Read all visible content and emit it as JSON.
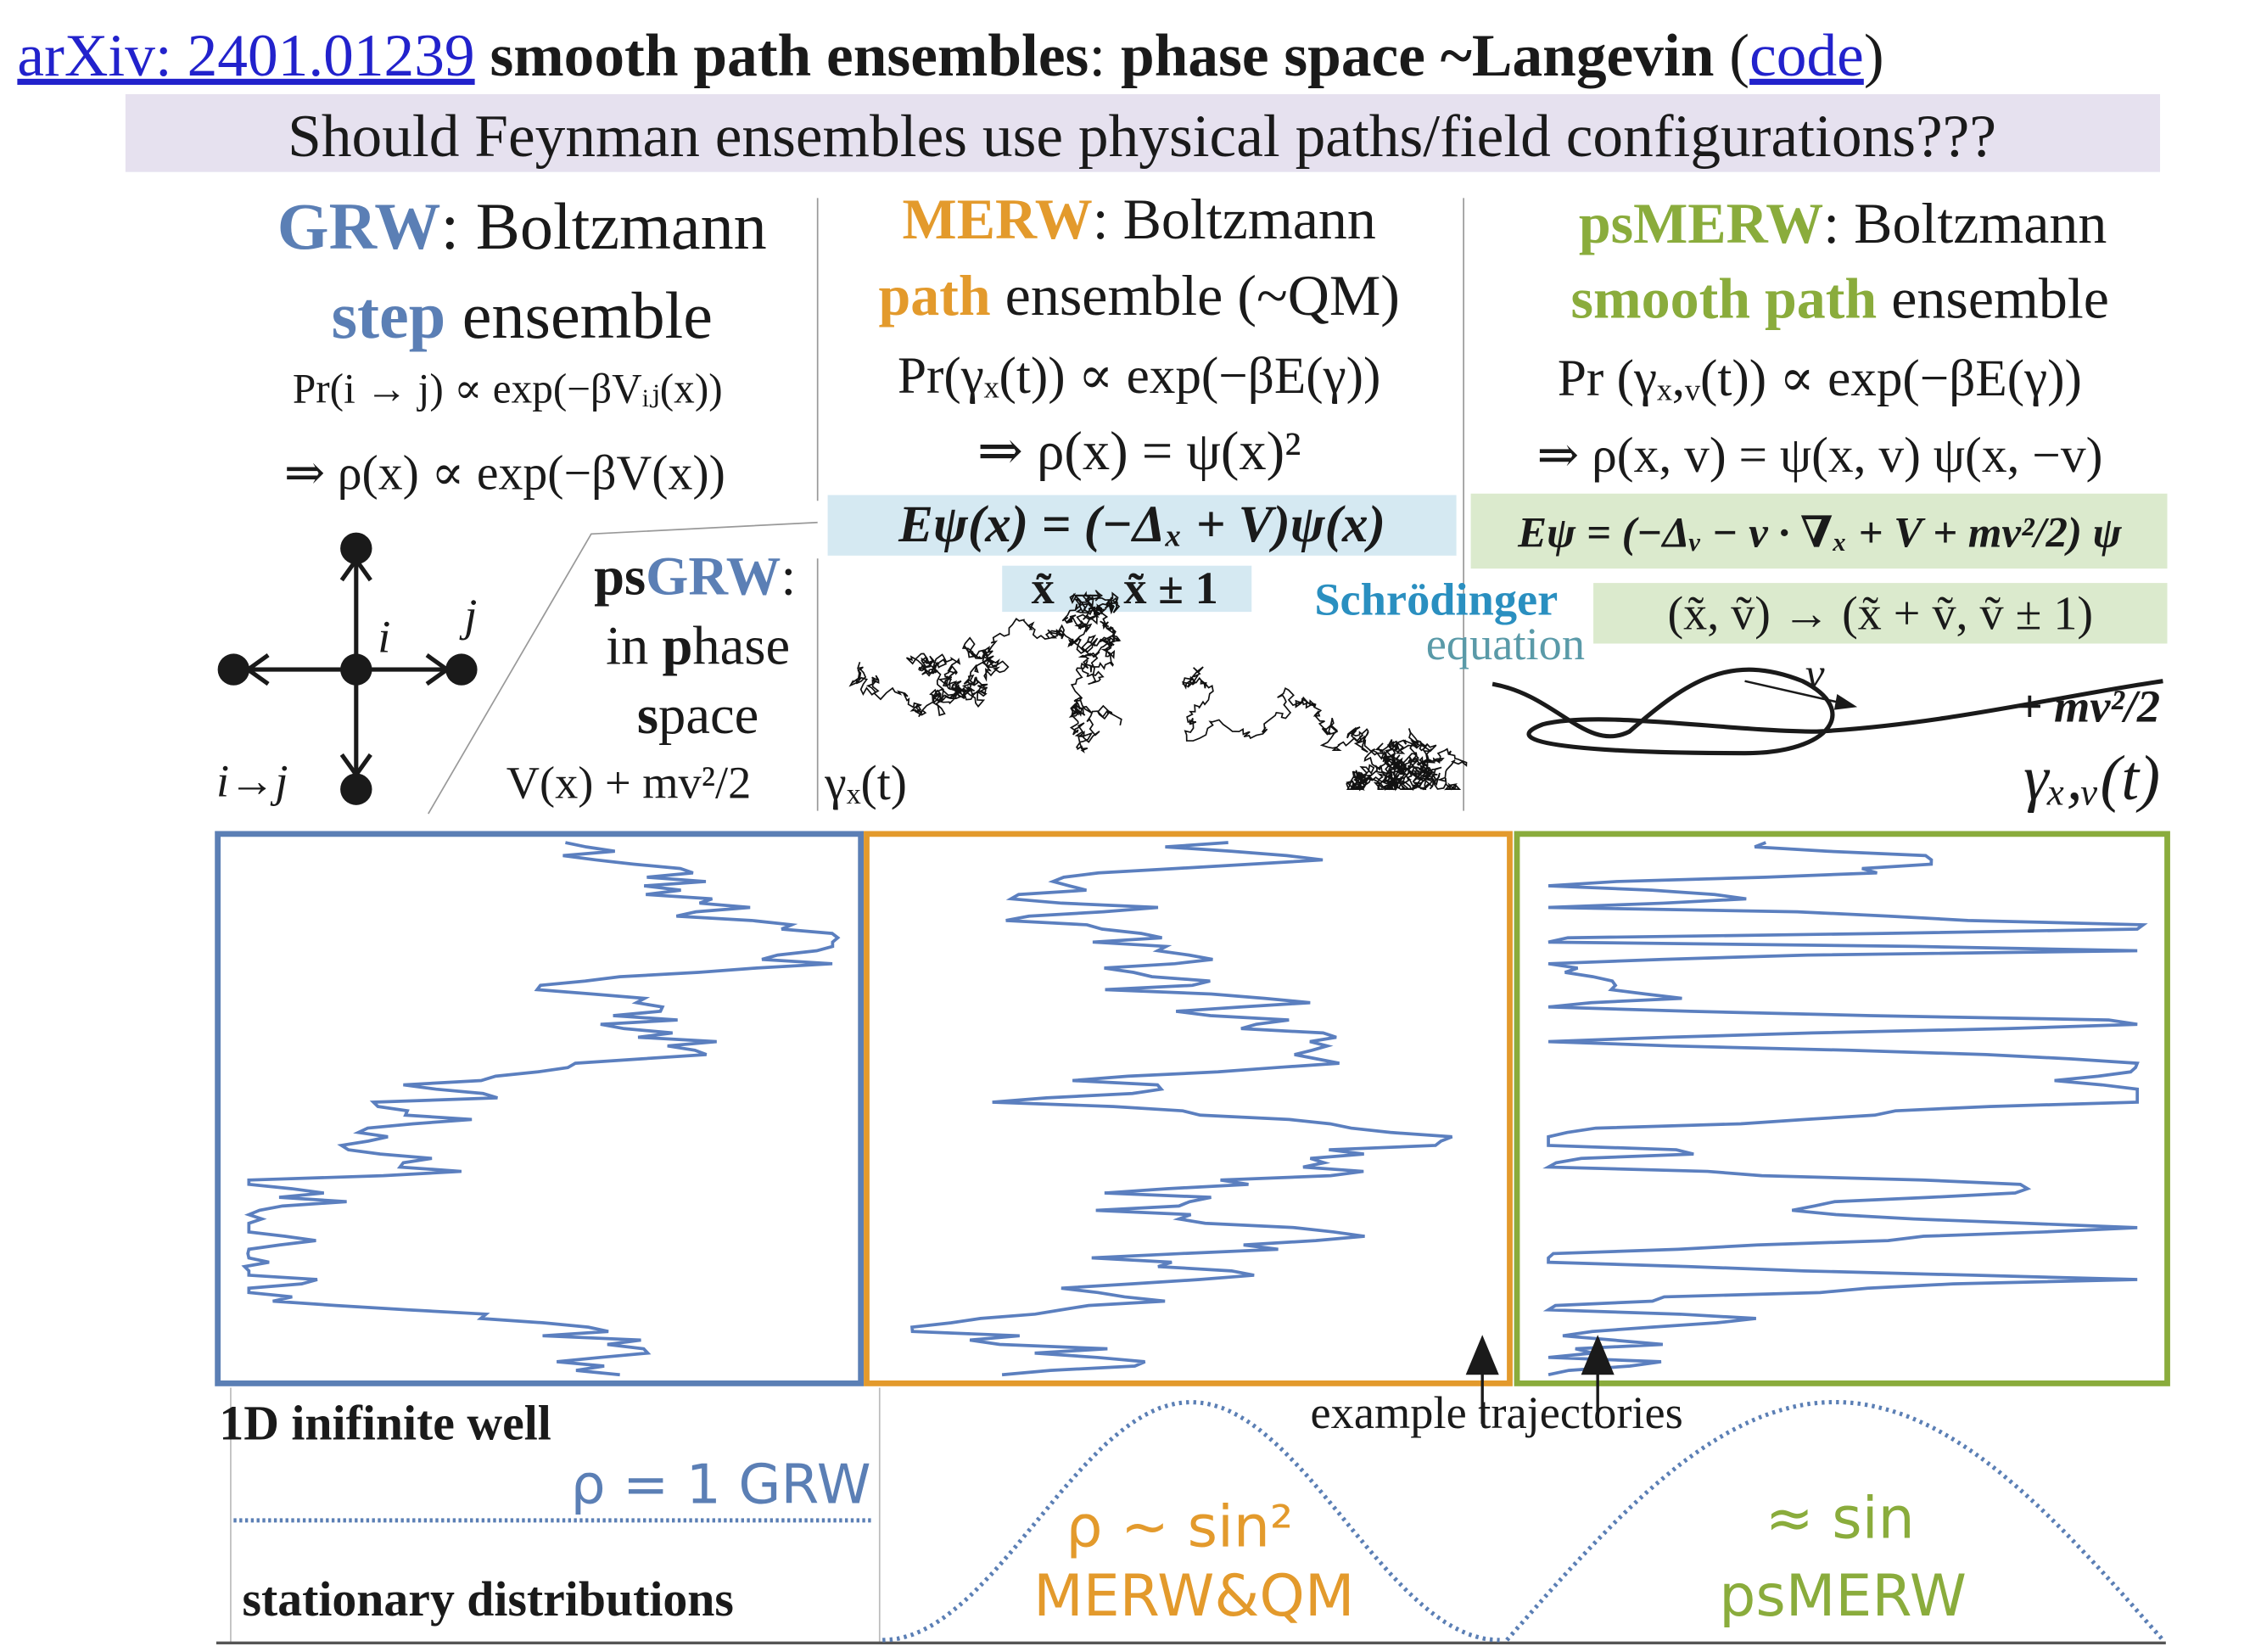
{
  "header": {
    "arxiv": "arXiv: 2401.01239",
    "title": "smooth path ensembles",
    "title_sep": ":",
    "title_rest": "phase space ~Langevin",
    "open": "(",
    "code": "code",
    "close": ")",
    "question": "Should Feynman ensembles use physical paths/field configurations???"
  },
  "grw": {
    "name": "GRW",
    "rest": ": Boltzmann",
    "line2_bold": "step",
    "line2_rest": " ensemble",
    "formula1": "Pr(i → j) ∝ exp(−βVᵢⱼ(x))",
    "formula2": "⇒ ρ(x) ∝ exp(−βV(x))"
  },
  "lattice": {
    "i": "i",
    "j": "j",
    "transition": "i→j"
  },
  "psgrw": {
    "prefix": "ps",
    "name": "GRW",
    "colon": ":",
    "line2a": "in ",
    "line2b": "p",
    "line2c": "hase",
    "line3a": "s",
    "line3b": "pace",
    "formula": "V(x) + mv²/2"
  },
  "merw": {
    "name": "MERW",
    "rest": ": Boltzmann",
    "line2_bold": "path",
    "line2_rest": " ensemble (~QM)",
    "formula1": "Pr(γₓ(t)) ∝ exp(−βE(γ))",
    "formula2": "⇒ ρ(x) = ψ(x)²",
    "formula3": "Eψ(x) = (−Δₓ + V)ψ(x)",
    "formula4": "x̃ → x̃ ± 1",
    "schrodinger": "Schrödinger",
    "equation": "equation",
    "path_label": "γₓ(t)"
  },
  "psmerw": {
    "name": "psMERW",
    "rest": ": Boltzmann",
    "line2_bold": "smooth path",
    "line2_rest": " ensemble",
    "formula1": "Pr (γₓ,ᵥ(t)) ∝ exp(−βE(γ))",
    "formula2": "⇒ ρ(x, v) = ψ(x, v) ψ(x, −v)",
    "formula3": "Eψ = (−Δᵥ − v · ∇ₓ + V + mv²/2) ψ",
    "formula4": "(x̃, ṽ) → (x̃ + ṽ, ṽ ± 1)",
    "v_label": "v",
    "energy": "+ mv²/2",
    "path_label": "γₓ,ᵥ(t)"
  },
  "bottom": {
    "title": "1D inifinite well",
    "stationary": "stationary distributions",
    "grw_density": "ρ = 1  GRW",
    "examples": "example trajectories",
    "merw_density": "ρ ~ sin²",
    "merw_name": "MERW&QM",
    "psmerw_density": "≈ sin",
    "psmerw_name": "psMERW"
  }
}
